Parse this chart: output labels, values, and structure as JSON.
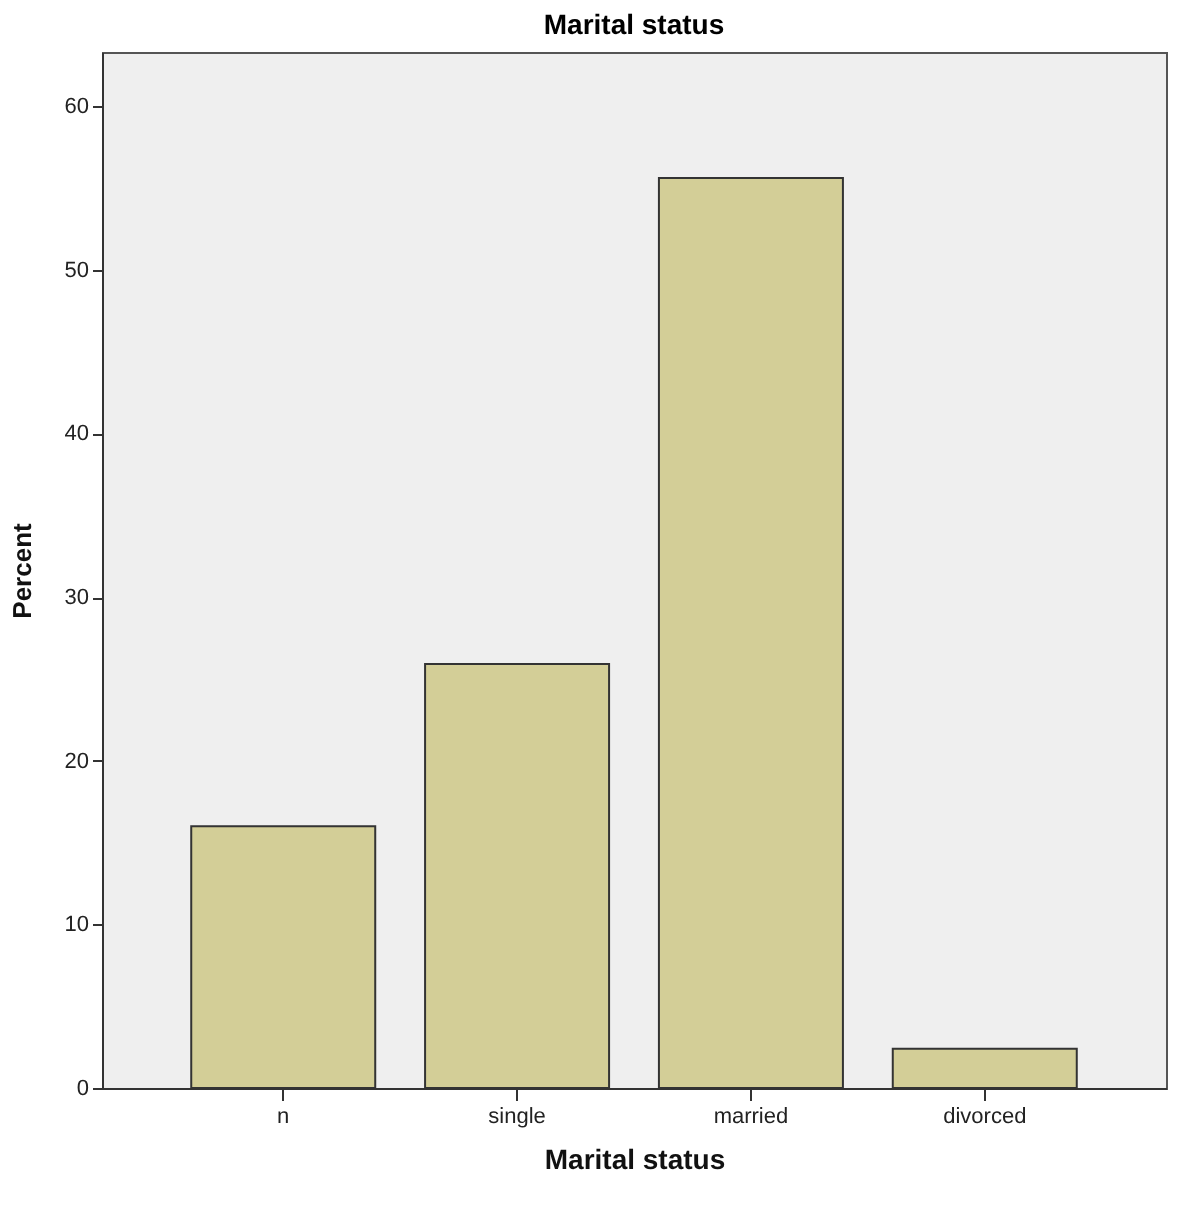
{
  "chart_data": {
    "type": "bar",
    "title": "Marital status",
    "xlabel": "Marital status",
    "ylabel": "Percent",
    "categories": [
      "n",
      "single",
      "married",
      "divorced"
    ],
    "values": [
      16.0,
      25.9,
      55.6,
      2.4
    ],
    "color": "#d3ce97",
    "ylim": [
      0,
      63.3
    ],
    "yticks": [
      0,
      10,
      20,
      30,
      40,
      50,
      60
    ],
    "grid": false
  }
}
